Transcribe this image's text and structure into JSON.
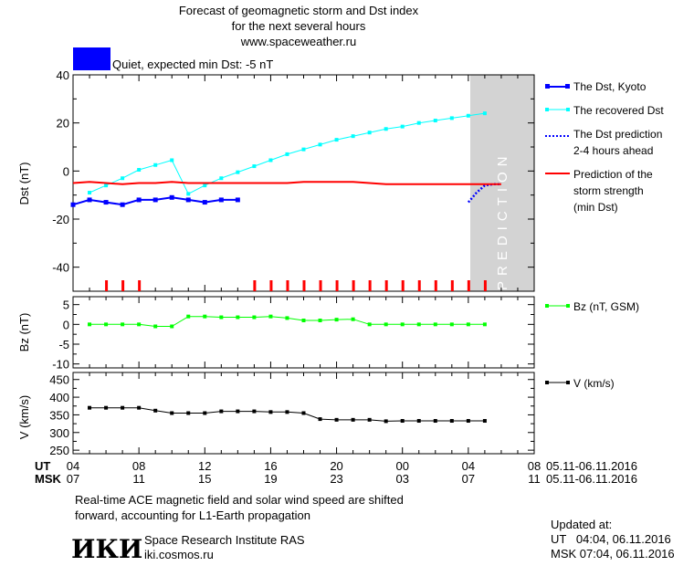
{
  "header": {
    "title_lines": [
      "Forecast of geomagnetic storm and Dst index",
      "for the next several hours",
      "www.spaceweather.ru"
    ],
    "status_text": "Quiet, expected min Dst: -5 nT",
    "status_color": "#0000ff"
  },
  "prediction_label": "PREDICTION",
  "legend": {
    "dst_kyoto": "The Dst, Kyoto",
    "recovered": [
      "The recovered Dst"
    ],
    "prediction_2_4": [
      "The Dst prediction",
      "2-4 hours ahead"
    ],
    "storm_strength": [
      "Prediction of the",
      "storm strength",
      "(min Dst)"
    ],
    "bz": "Bz (nT, GSM)",
    "v": "V (km/s)"
  },
  "time_axis": {
    "ut_label": "UT",
    "msk_label": "MSK",
    "ut_ticks": [
      "04",
      "08",
      "12",
      "16",
      "20",
      "00",
      "04",
      "08"
    ],
    "msk_ticks": [
      "07",
      "11",
      "15",
      "19",
      "23",
      "03",
      "07",
      "11"
    ],
    "ut_range": "05.11-06.11.2016",
    "msk_range": "05.11-06.11.2016"
  },
  "footer": {
    "note_lines": [
      "Real-time ACE magnetic field and solar wind speed are shifted",
      "forward, accounting for L1-Earth propagation"
    ],
    "institute": "Space Research Institute RAS",
    "site": "iki.cosmos.ru",
    "logo_text": "ИКИ",
    "updated_label": "Updated at:",
    "updated_ut": "UT   04:04, 06.11.2016",
    "updated_msk": "MSK 07:04, 06.11.2016"
  },
  "chart_data": [
    {
      "type": "line",
      "ylabel": "Dst (nT)",
      "ylim": [
        -50,
        40
      ],
      "yticks": [
        40,
        20,
        0,
        -20,
        -40
      ],
      "xlim": [
        0,
        28
      ],
      "prediction_region": [
        24,
        28
      ],
      "series": [
        {
          "name": "The Dst, Kyoto",
          "color": "#0000ff",
          "x": [
            0,
            1,
            2,
            3,
            4,
            5,
            6,
            7,
            8,
            9,
            10
          ],
          "values": [
            -14,
            -12,
            -13,
            -14,
            -12,
            -12,
            -11,
            -12,
            -13,
            -12,
            -12
          ]
        },
        {
          "name": "The recovered Dst",
          "color": "#00ffff",
          "x": [
            1,
            2,
            3,
            4,
            5,
            6,
            7,
            8,
            9,
            10,
            11,
            12,
            13,
            14,
            15,
            16,
            17,
            18,
            19,
            20,
            21,
            22,
            23,
            24,
            25
          ],
          "values": [
            -9,
            -6,
            -3,
            0.5,
            2.5,
            4.5,
            -9.5,
            -6,
            -3,
            -0.5,
            2,
            4.5,
            7,
            9,
            11,
            13,
            14.5,
            16,
            17.5,
            18.5,
            20,
            21,
            22,
            23,
            24
          ]
        },
        {
          "name": "The Dst prediction 2-4 hours ahead",
          "color": "#0000ff",
          "dashed": true,
          "x": [
            24,
            24.5,
            25,
            25.5,
            26
          ],
          "values": [
            -13,
            -9,
            -6,
            -5.5,
            -5.5
          ]
        },
        {
          "name": "Prediction of the storm strength (min Dst)",
          "color": "#ff0000",
          "x": [
            0,
            1,
            2,
            3,
            4,
            5,
            6,
            7,
            8,
            9,
            10,
            11,
            12,
            13,
            14,
            15,
            16,
            17,
            18,
            19,
            20,
            21,
            22,
            23,
            24,
            25,
            26
          ],
          "values": [
            -5,
            -4.5,
            -5,
            -5.5,
            -5,
            -5,
            -4.5,
            -5,
            -5,
            -5,
            -5,
            -5,
            -5,
            -5,
            -4.5,
            -4.5,
            -4.5,
            -4.5,
            -5,
            -5.5,
            -5.5,
            -5.5,
            -5.5,
            -5.5,
            -5.5,
            -5.5,
            -5.5
          ]
        }
      ],
      "red_tick_x": [
        2,
        3,
        4,
        11,
        12,
        13,
        14,
        15,
        16,
        17,
        18,
        19,
        20,
        21,
        22,
        23,
        24,
        25
      ]
    },
    {
      "type": "line",
      "ylabel": "Bz (nT)",
      "ylim": [
        -11,
        7
      ],
      "yticks": [
        5,
        0,
        -5,
        -10
      ],
      "xlim": [
        0,
        28
      ],
      "series": [
        {
          "name": "Bz (nT, GSM)",
          "color": "#00ff00",
          "x": [
            1,
            2,
            3,
            4,
            5,
            6,
            7,
            8,
            9,
            10,
            11,
            12,
            13,
            14,
            15,
            16,
            17,
            18,
            19,
            20,
            21,
            22,
            23,
            24,
            25
          ],
          "values": [
            0,
            0,
            0,
            0,
            -0.5,
            -0.5,
            2,
            2,
            1.8,
            1.8,
            1.8,
            2,
            1.6,
            1,
            1,
            1.2,
            1.3,
            0,
            0,
            0,
            0,
            0,
            0,
            0,
            0
          ]
        }
      ]
    },
    {
      "type": "line",
      "ylabel": "V (km/s)",
      "ylim": [
        240,
        470
      ],
      "yticks": [
        450,
        400,
        350,
        300,
        250
      ],
      "xlim": [
        0,
        28
      ],
      "series": [
        {
          "name": "V (km/s)",
          "color": "#000000",
          "x": [
            1,
            2,
            3,
            4,
            5,
            6,
            7,
            8,
            9,
            10,
            11,
            12,
            13,
            14,
            15,
            16,
            17,
            18,
            19,
            20,
            21,
            22,
            23,
            24,
            25
          ],
          "values": [
            370,
            370,
            370,
            370,
            362,
            355,
            355,
            355,
            360,
            360,
            360,
            358,
            358,
            355,
            338,
            336,
            336,
            336,
            332,
            333,
            333,
            333,
            333,
            333,
            333
          ]
        }
      ]
    }
  ]
}
